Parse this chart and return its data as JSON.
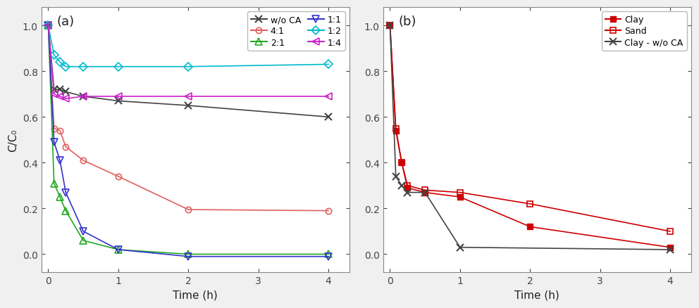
{
  "panel_a": {
    "title": "(a)",
    "xlabel": "Time (h)",
    "ylabel": "C/C₀",
    "xlim": [
      -0.1,
      4.3
    ],
    "ylim": [
      -0.08,
      1.08
    ],
    "xticks": [
      0,
      1,
      2,
      3,
      4
    ],
    "yticks": [
      0.0,
      0.2,
      0.4,
      0.6,
      0.8,
      1.0
    ],
    "series": [
      {
        "name": "w/o CA",
        "x": [
          0,
          0.083,
          0.167,
          0.25,
          0.5,
          1.0,
          2.0,
          4.0
        ],
        "y": [
          1.0,
          0.72,
          0.72,
          0.71,
          0.69,
          0.67,
          0.65,
          0.6
        ],
        "color": "#444444",
        "marker": "x",
        "markersize": 7,
        "linewidth": 1.2,
        "fillstyle": "full",
        "markeredgewidth": 1.5
      },
      {
        "name": "4:1",
        "x": [
          0,
          0.083,
          0.167,
          0.25,
          0.5,
          1.0,
          2.0,
          4.0
        ],
        "y": [
          1.0,
          0.55,
          0.54,
          0.47,
          0.41,
          0.34,
          0.195,
          0.19
        ],
        "color": "#e06060",
        "marker": "o",
        "markersize": 6,
        "linewidth": 1.2,
        "fillstyle": "none",
        "markeredgewidth": 1.2
      },
      {
        "name": "2:1",
        "x": [
          0,
          0.083,
          0.167,
          0.25,
          0.5,
          1.0,
          2.0,
          4.0
        ],
        "y": [
          1.0,
          0.31,
          0.25,
          0.19,
          0.06,
          0.02,
          0.0,
          0.0
        ],
        "color": "#22aa22",
        "marker": "^",
        "markersize": 7,
        "linewidth": 1.2,
        "fillstyle": "none",
        "markeredgewidth": 1.2
      },
      {
        "name": "1:1",
        "x": [
          0,
          0.083,
          0.167,
          0.25,
          0.5,
          1.0,
          2.0,
          4.0
        ],
        "y": [
          1.0,
          0.49,
          0.41,
          0.27,
          0.1,
          0.02,
          -0.01,
          -0.01
        ],
        "color": "#3333cc",
        "marker": "v",
        "markersize": 7,
        "linewidth": 1.2,
        "fillstyle": "none",
        "markeredgewidth": 1.2
      },
      {
        "name": "1:2",
        "x": [
          0,
          0.083,
          0.167,
          0.25,
          0.5,
          1.0,
          2.0,
          4.0
        ],
        "y": [
          1.0,
          0.87,
          0.84,
          0.82,
          0.82,
          0.82,
          0.82,
          0.83
        ],
        "color": "#00bbcc",
        "marker": "D",
        "markersize": 6,
        "linewidth": 1.2,
        "fillstyle": "none",
        "markeredgewidth": 1.2
      },
      {
        "name": "1:4",
        "x": [
          0,
          0.083,
          0.167,
          0.25,
          0.5,
          1.0,
          2.0,
          4.0
        ],
        "y": [
          1.0,
          0.7,
          0.69,
          0.68,
          0.69,
          0.69,
          0.69,
          0.69
        ],
        "color": "#cc22cc",
        "marker": "<",
        "markersize": 7,
        "linewidth": 1.2,
        "fillstyle": "none",
        "markeredgewidth": 1.2
      }
    ]
  },
  "panel_b": {
    "title": "(b)",
    "xlabel": "Time (h)",
    "ylabel": "",
    "xlim": [
      -0.1,
      4.3
    ],
    "ylim": [
      -0.08,
      1.08
    ],
    "xticks": [
      0,
      1,
      2,
      3,
      4
    ],
    "yticks": [
      0.0,
      0.2,
      0.4,
      0.6,
      0.8,
      1.0
    ],
    "series": [
      {
        "name": "Clay",
        "x": [
          0,
          0.083,
          0.167,
          0.25,
          0.5,
          1.0,
          2.0,
          4.0
        ],
        "y": [
          1.0,
          0.54,
          0.4,
          0.29,
          0.27,
          0.25,
          0.12,
          0.03
        ],
        "color": "#cc0000",
        "marker": "s",
        "markersize": 6,
        "linewidth": 1.2,
        "fillstyle": "full",
        "markeredgewidth": 1.0
      },
      {
        "name": "Sand",
        "x": [
          0,
          0.083,
          0.167,
          0.25,
          0.5,
          1.0,
          2.0,
          4.0
        ],
        "y": [
          1.0,
          0.55,
          0.4,
          0.3,
          0.28,
          0.27,
          0.22,
          0.1
        ],
        "color": "#cc0000",
        "marker": "s",
        "markersize": 6,
        "linewidth": 1.2,
        "fillstyle": "none",
        "markeredgewidth": 1.2
      },
      {
        "name": "Clay - w/o CA",
        "x": [
          0,
          0.083,
          0.167,
          0.25,
          0.5,
          1.0,
          4.0
        ],
        "y": [
          1.0,
          0.34,
          0.3,
          0.27,
          0.27,
          0.03,
          0.02
        ],
        "color": "#444444",
        "marker": "x",
        "markersize": 7,
        "linewidth": 1.2,
        "fillstyle": "full",
        "markeredgewidth": 1.5
      }
    ]
  },
  "fig_bgcolor": "#f0f0f0",
  "axes_bgcolor": "#ffffff",
  "spine_color": "#888888",
  "tick_color": "#444444",
  "label_fontsize": 11,
  "title_fontsize": 13,
  "legend_fontsize": 9
}
